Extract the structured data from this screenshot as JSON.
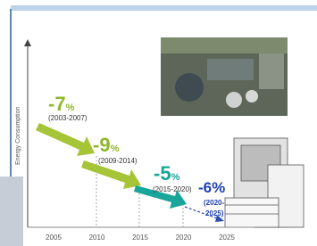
{
  "axis": {
    "y_label": "Energy Consumption",
    "x_labels": [
      "2005",
      "2010",
      "2015",
      "2020",
      "2025"
    ]
  },
  "steps": [
    {
      "change": "-7",
      "unit": "%",
      "period": [
        "(2003-2007)"
      ]
    },
    {
      "change": "-9",
      "unit": "%",
      "period": [
        "(2009-2014)"
      ]
    },
    {
      "change": "-5",
      "unit": "%",
      "period": [
        "(2015-2020)"
      ]
    },
    {
      "change": "-6",
      "unit": "%",
      "period": [
        "(2020-",
        "2025)"
      ]
    }
  ]
}
